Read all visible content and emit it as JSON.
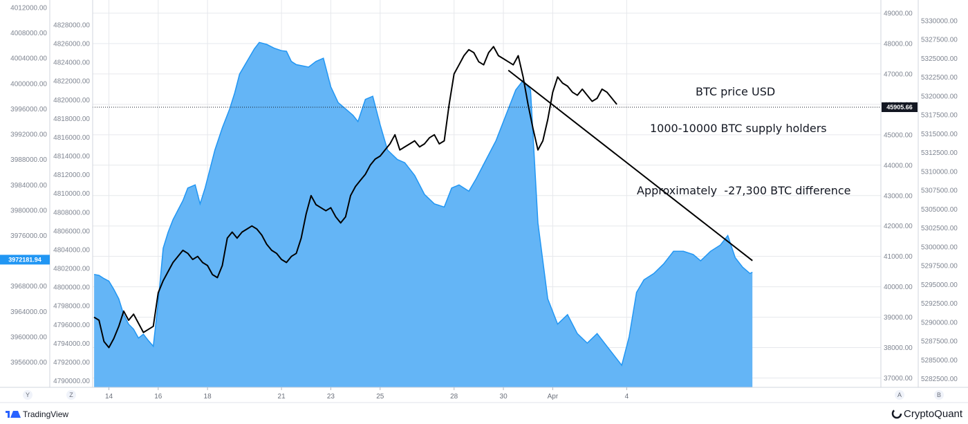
{
  "chart_data": {
    "type": "line",
    "title": "",
    "annotations": {
      "btc_price": "BTC price USD",
      "holders": "1000-10000 BTC supply holders",
      "difference": "Approximately  -27,300 BTC difference"
    },
    "x_ticks": [
      "14",
      "16",
      "18",
      "21",
      "23",
      "25",
      "28",
      "30",
      "Apr",
      "4"
    ],
    "y_axes": {
      "left_outer": {
        "ticks": [
          "4012000.00",
          "4008000.00",
          "4004000.00",
          "4000000.00",
          "3996000.00",
          "3992000.00",
          "3988000.00",
          "3984000.00",
          "3980000.00",
          "3976000.00",
          "3972000.00",
          "3968000.00",
          "3964000.00",
          "3960000.00",
          "3956000.00"
        ],
        "current_label": "3972181.94"
      },
      "left_inner": {
        "ticks": [
          "4828000.00",
          "4826000.00",
          "4824000.00",
          "4822000.00",
          "4820000.00",
          "4818000.00",
          "4816000.00",
          "4814000.00",
          "4812000.00",
          "4810000.00",
          "4808000.00",
          "4806000.00",
          "4804000.00",
          "4802000.00",
          "4800000.00",
          "4798000.00",
          "4796000.00",
          "4794000.00",
          "4792000.00",
          "4790000.00"
        ]
      },
      "right_inner": {
        "ticks": [
          "49000.00",
          "48000.00",
          "47000.00",
          "46000.00",
          "45000.00",
          "44000.00",
          "43000.00",
          "42000.00",
          "41000.00",
          "40000.00",
          "39000.00",
          "38000.00",
          "37000.00"
        ],
        "current_label": "45905.66"
      },
      "right_outer": {
        "ticks": [
          "5330000.00",
          "5327500.00",
          "5325000.00",
          "5322500.00",
          "5320000.00",
          "5317500.00",
          "5315000.00",
          "5312500.00",
          "5310000.00",
          "5307500.00",
          "5305000.00",
          "5302500.00",
          "5300000.00",
          "5297500.00",
          "5295000.00",
          "5292500.00",
          "5290000.00",
          "5287500.00",
          "5285000.00",
          "5282500.00"
        ]
      }
    },
    "series": [
      {
        "kind": "area",
        "color": "#2196f3",
        "fill": "#64b5f6",
        "axis": "left_outer",
        "points": [
          [
            13.4,
            3969850
          ],
          [
            13.6,
            3969700
          ],
          [
            13.8,
            3969200
          ],
          [
            14.0,
            3968800
          ],
          [
            14.2,
            3967500
          ],
          [
            14.4,
            3966000
          ],
          [
            14.6,
            3963500
          ],
          [
            14.8,
            3962000
          ],
          [
            15.0,
            3961200
          ],
          [
            15.2,
            3959800
          ],
          [
            15.4,
            3960400
          ],
          [
            15.6,
            3959400
          ],
          [
            15.8,
            3958500
          ],
          [
            16.0,
            3965500
          ],
          [
            16.2,
            3974000
          ],
          [
            16.4,
            3976500
          ],
          [
            16.6,
            3978500
          ],
          [
            16.8,
            3980000
          ],
          [
            17.0,
            3981500
          ],
          [
            17.2,
            3983500
          ],
          [
            17.5,
            3984000
          ],
          [
            17.7,
            3981000
          ],
          [
            17.9,
            3983500
          ],
          [
            18.1,
            3986500
          ],
          [
            18.3,
            3989500
          ],
          [
            18.6,
            3993000
          ],
          [
            18.9,
            3996000
          ],
          [
            19.1,
            3998500
          ],
          [
            19.3,
            4001500
          ],
          [
            19.6,
            4003500
          ],
          [
            19.9,
            4005500
          ],
          [
            20.1,
            4006500
          ],
          [
            20.4,
            4006200
          ],
          [
            20.7,
            4005600
          ],
          [
            21.0,
            4005200
          ],
          [
            21.2,
            4005100
          ],
          [
            21.4,
            4003500
          ],
          [
            21.6,
            4003000
          ],
          [
            22.1,
            4002600
          ],
          [
            22.4,
            4003500
          ],
          [
            22.7,
            4004000
          ],
          [
            23.0,
            3999500
          ],
          [
            23.3,
            3997000
          ],
          [
            23.6,
            3996000
          ],
          [
            23.9,
            3995000
          ],
          [
            24.1,
            3994000
          ],
          [
            24.4,
            3997500
          ],
          [
            24.7,
            3998000
          ],
          [
            25.0,
            3993500
          ],
          [
            25.3,
            3989500
          ],
          [
            25.7,
            3988000
          ],
          [
            26.0,
            3987500
          ],
          [
            26.4,
            3985500
          ],
          [
            26.8,
            3982500
          ],
          [
            27.2,
            3981000
          ],
          [
            27.6,
            3980500
          ],
          [
            27.9,
            3983500
          ],
          [
            28.2,
            3984000
          ],
          [
            28.6,
            3983000
          ],
          [
            28.9,
            3985000
          ],
          [
            29.3,
            3988000
          ],
          [
            29.7,
            3991000
          ],
          [
            30.1,
            3995000
          ],
          [
            30.5,
            3999000
          ],
          [
            30.8,
            4000500
          ],
          [
            31.1,
            3999000
          ],
          [
            31.4,
            3978000
          ],
          [
            31.8,
            3966000
          ],
          [
            32.2,
            3962000
          ],
          [
            32.6,
            3963500
          ],
          [
            33.0,
            3960500
          ],
          [
            33.4,
            3959000
          ],
          [
            33.8,
            3960500
          ],
          [
            34.2,
            3958500
          ],
          [
            34.5,
            3957000
          ],
          [
            34.8,
            3955500
          ],
          [
            35.1,
            3960000
          ],
          [
            35.4,
            3967000
          ],
          [
            35.7,
            3969000
          ],
          [
            36.1,
            3970000
          ],
          [
            36.5,
            3971500
          ],
          [
            36.9,
            3973500
          ],
          [
            37.3,
            3973500
          ],
          [
            37.7,
            3973000
          ],
          [
            38.0,
            3972000
          ],
          [
            38.4,
            3973500
          ],
          [
            38.8,
            3974500
          ],
          [
            39.1,
            3976000
          ],
          [
            39.4,
            3972500
          ],
          [
            39.7,
            3971000
          ],
          [
            40.0,
            3970000
          ],
          [
            40.1,
            3970200
          ]
        ]
      },
      {
        "kind": "line",
        "color": "#000000",
        "axis": "right_inner",
        "points": [
          [
            13.4,
            39000
          ],
          [
            13.6,
            38900
          ],
          [
            13.8,
            38200
          ],
          [
            14.0,
            38000
          ],
          [
            14.2,
            38300
          ],
          [
            14.4,
            38700
          ],
          [
            14.6,
            39200
          ],
          [
            14.8,
            38900
          ],
          [
            15.0,
            39100
          ],
          [
            15.2,
            38800
          ],
          [
            15.4,
            38500
          ],
          [
            15.6,
            38600
          ],
          [
            15.8,
            38700
          ],
          [
            16.0,
            39800
          ],
          [
            16.2,
            40200
          ],
          [
            16.4,
            40500
          ],
          [
            16.6,
            40800
          ],
          [
            16.8,
            41000
          ],
          [
            17.0,
            41200
          ],
          [
            17.2,
            41100
          ],
          [
            17.4,
            40900
          ],
          [
            17.6,
            41000
          ],
          [
            17.8,
            40800
          ],
          [
            18.0,
            40700
          ],
          [
            18.2,
            40400
          ],
          [
            18.4,
            40300
          ],
          [
            18.6,
            40700
          ],
          [
            18.8,
            41600
          ],
          [
            19.0,
            41800
          ],
          [
            19.2,
            41600
          ],
          [
            19.4,
            41800
          ],
          [
            19.6,
            41900
          ],
          [
            19.8,
            42000
          ],
          [
            20.0,
            41900
          ],
          [
            20.2,
            41700
          ],
          [
            20.4,
            41400
          ],
          [
            20.6,
            41200
          ],
          [
            20.8,
            41100
          ],
          [
            21.0,
            40900
          ],
          [
            21.2,
            40800
          ],
          [
            21.4,
            41000
          ],
          [
            21.6,
            41100
          ],
          [
            21.8,
            41600
          ],
          [
            22.0,
            42400
          ],
          [
            22.2,
            43000
          ],
          [
            22.4,
            42700
          ],
          [
            22.6,
            42600
          ],
          [
            22.8,
            42500
          ],
          [
            23.0,
            42600
          ],
          [
            23.2,
            42300
          ],
          [
            23.4,
            42100
          ],
          [
            23.6,
            42300
          ],
          [
            23.8,
            43000
          ],
          [
            24.0,
            43300
          ],
          [
            24.2,
            43500
          ],
          [
            24.4,
            43700
          ],
          [
            24.6,
            44000
          ],
          [
            24.8,
            44200
          ],
          [
            25.0,
            44300
          ],
          [
            25.2,
            44500
          ],
          [
            25.4,
            44700
          ],
          [
            25.6,
            45000
          ],
          [
            25.8,
            44500
          ],
          [
            26.0,
            44600
          ],
          [
            26.2,
            44700
          ],
          [
            26.4,
            44800
          ],
          [
            26.6,
            44600
          ],
          [
            26.8,
            44700
          ],
          [
            27.0,
            44900
          ],
          [
            27.2,
            45000
          ],
          [
            27.4,
            44700
          ],
          [
            27.6,
            44800
          ],
          [
            27.8,
            46000
          ],
          [
            28.0,
            47000
          ],
          [
            28.2,
            47300
          ],
          [
            28.4,
            47600
          ],
          [
            28.6,
            47800
          ],
          [
            28.8,
            47700
          ],
          [
            29.0,
            47400
          ],
          [
            29.2,
            47300
          ],
          [
            29.4,
            47700
          ],
          [
            29.6,
            47900
          ],
          [
            29.8,
            47600
          ],
          [
            30.0,
            47500
          ],
          [
            30.2,
            47400
          ],
          [
            30.4,
            47300
          ],
          [
            30.6,
            47600
          ],
          [
            30.8,
            46900
          ],
          [
            31.0,
            46000
          ],
          [
            31.2,
            45200
          ],
          [
            31.4,
            44500
          ],
          [
            31.6,
            44800
          ],
          [
            31.8,
            45500
          ],
          [
            32.0,
            46400
          ],
          [
            32.2,
            46900
          ],
          [
            32.4,
            46700
          ],
          [
            32.6,
            46600
          ],
          [
            32.8,
            46400
          ],
          [
            33.0,
            46300
          ],
          [
            33.2,
            46500
          ],
          [
            33.4,
            46300
          ],
          [
            33.6,
            46100
          ],
          [
            33.8,
            46200
          ],
          [
            34.0,
            46500
          ],
          [
            34.2,
            46400
          ],
          [
            34.4,
            46200
          ],
          [
            34.6,
            46000
          ]
        ]
      }
    ],
    "trendline": {
      "from": [
        30.2,
        47120
      ],
      "to": [
        40.1,
        40860
      ]
    },
    "horizontal_ref": {
      "axis": "right_inner",
      "value": 45905.66
    }
  },
  "branding": {
    "left": "TradingView",
    "right": "CryptoQuant",
    "axis_buttons": [
      "Y",
      "Z",
      "A",
      "B"
    ]
  },
  "colors": {
    "area_line": "#2196f3",
    "area_fill": "#64b5f6",
    "price_line": "#000000",
    "left_badge": "#2196f3",
    "right_badge": "#131722",
    "grid": "#e6e8ec"
  }
}
